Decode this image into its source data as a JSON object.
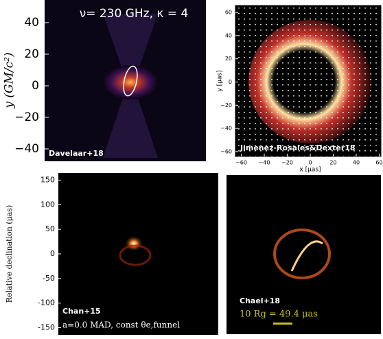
{
  "panels": [
    {
      "label": "Davelaar+18",
      "title": "ν= 230 GHz, κ = 4",
      "ylabel": "y (GM/c²)",
      "yticks": [
        40,
        20,
        0,
        {
          "value": -20,
          "label": "−20"
        },
        {
          "value": -40,
          "label": "−40"
        }
      ]
    },
    {
      "label": "Jimenez-Rosales&Dexter18",
      "ylabel": "y [μas]",
      "xlabel": "x [μas]",
      "yticks": [
        60,
        40,
        20,
        0,
        {
          "value": -20,
          "label": "−20"
        },
        {
          "value": -40,
          "label": "−40"
        },
        {
          "value": -60,
          "label": "−60"
        }
      ],
      "xticks": [
        {
          "value": -60,
          "label": "−60"
        },
        {
          "value": -40,
          "label": "−40"
        },
        {
          "value": -20,
          "label": "−20"
        },
        0,
        20,
        40,
        60
      ]
    },
    {
      "label": "Chan+15",
      "sublabel": "a=0.0 MAD, const θe,funnel",
      "ylabel": "Relative declination (μas)",
      "yticks": [
        150,
        100,
        50,
        0,
        {
          "value": -50,
          "label": "-50"
        },
        {
          "value": -100,
          "label": "-100"
        },
        {
          "value": -150,
          "label": "-150"
        }
      ]
    },
    {
      "label": "Chael+18",
      "scale_label": "10 Rg = 49.4 μas"
    }
  ]
}
